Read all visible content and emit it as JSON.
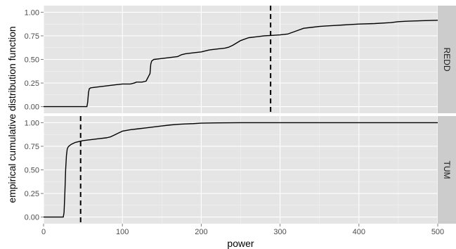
{
  "chart_data": {
    "type": "line",
    "title": "",
    "xlabel": "power",
    "ylabel": "empirical cumulative distribution function",
    "xlim": [
      0,
      500
    ],
    "ylim": [
      0,
      1
    ],
    "x_ticks": [
      0,
      100,
      200,
      300,
      400,
      500
    ],
    "y_ticks": [
      0.0,
      0.25,
      0.5,
      0.75,
      1.0
    ],
    "x_tick_labels": [
      "0",
      "100",
      "200",
      "300",
      "400",
      "500"
    ],
    "y_tick_labels": [
      "0.00",
      "0.25",
      "0.50",
      "0.75",
      "1.00"
    ],
    "grid": true,
    "legend": "none",
    "facets": [
      {
        "label": "REDD",
        "vline_x": 288,
        "series": {
          "x": [
            0,
            55,
            56,
            57,
            58,
            60,
            70,
            80,
            90,
            100,
            110,
            115,
            118,
            120,
            125,
            130,
            135,
            136,
            137,
            138,
            140,
            150,
            160,
            170,
            175,
            180,
            190,
            200,
            210,
            220,
            230,
            235,
            240,
            250,
            260,
            270,
            280,
            290,
            300,
            310,
            320,
            330,
            340,
            350,
            360,
            370,
            380,
            390,
            400,
            420,
            440,
            450,
            460,
            480,
            500
          ],
          "y": [
            0,
            0,
            0.05,
            0.15,
            0.19,
            0.2,
            0.21,
            0.22,
            0.23,
            0.24,
            0.24,
            0.25,
            0.26,
            0.26,
            0.26,
            0.27,
            0.35,
            0.45,
            0.48,
            0.49,
            0.5,
            0.51,
            0.52,
            0.53,
            0.55,
            0.56,
            0.57,
            0.58,
            0.6,
            0.61,
            0.62,
            0.63,
            0.65,
            0.7,
            0.73,
            0.74,
            0.75,
            0.755,
            0.76,
            0.77,
            0.8,
            0.83,
            0.84,
            0.85,
            0.855,
            0.86,
            0.865,
            0.87,
            0.875,
            0.88,
            0.89,
            0.9,
            0.905,
            0.91,
            0.915
          ]
        }
      },
      {
        "label": "TUM",
        "vline_x": 47,
        "series": {
          "x": [
            0,
            25,
            26,
            27,
            28,
            29,
            30,
            31,
            32,
            35,
            40,
            45,
            50,
            60,
            70,
            80,
            85,
            90,
            95,
            100,
            110,
            120,
            130,
            140,
            150,
            160,
            170,
            180,
            190,
            200,
            220,
            250,
            300,
            350,
            400,
            450,
            500
          ],
          "y": [
            0,
            0,
            0.05,
            0.25,
            0.5,
            0.65,
            0.72,
            0.74,
            0.75,
            0.77,
            0.79,
            0.8,
            0.81,
            0.82,
            0.83,
            0.84,
            0.85,
            0.87,
            0.89,
            0.91,
            0.925,
            0.935,
            0.945,
            0.955,
            0.965,
            0.975,
            0.982,
            0.987,
            0.99,
            0.995,
            0.998,
            1.0,
            1.0,
            1.0,
            1.0,
            1.0,
            1.0
          ]
        }
      }
    ]
  }
}
